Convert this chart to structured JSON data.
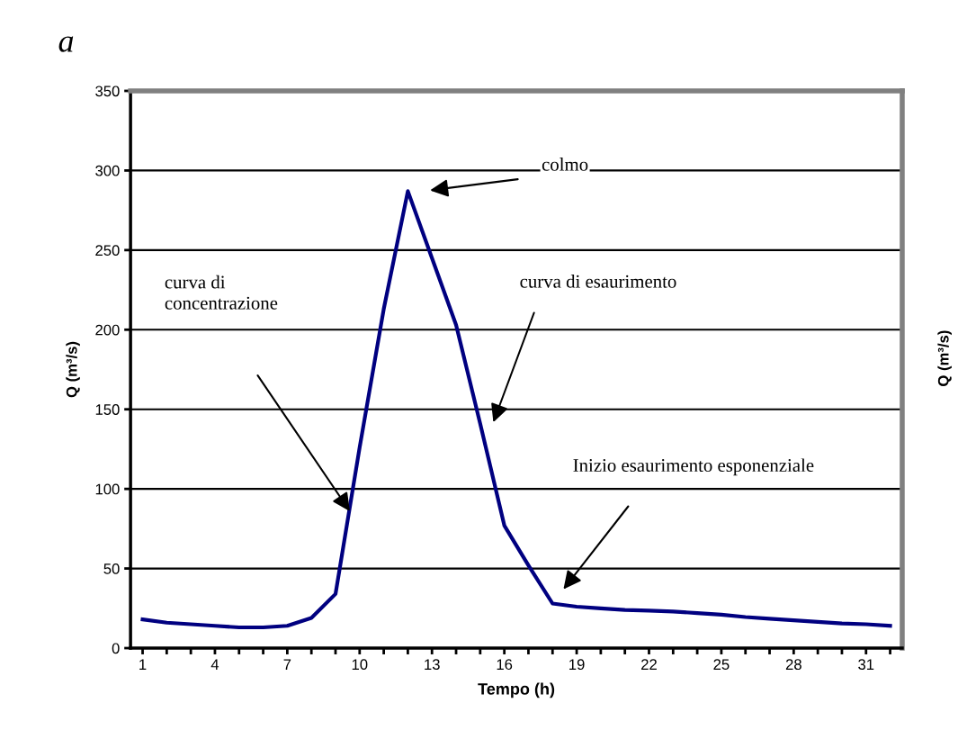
{
  "chart_data": {
    "type": "line",
    "title": "a",
    "xlabel": "Tempo (h)",
    "ylabel": "Q (m³/s)",
    "y2label": "Q (m³/s)",
    "x": [
      1,
      2,
      3,
      4,
      5,
      6,
      7,
      8,
      9,
      10,
      11,
      12,
      13,
      14,
      15,
      16,
      17,
      18,
      19,
      20,
      21,
      22,
      23,
      24,
      25,
      26,
      27,
      28,
      29,
      30,
      31,
      32
    ],
    "series": [
      {
        "color": "#000080",
        "values": [
          18,
          16,
          15,
          14,
          13,
          13,
          14,
          19,
          34,
          126,
          213,
          287,
          245,
          203,
          141,
          77,
          52,
          28,
          26,
          25,
          24,
          23.5,
          23,
          22,
          21,
          19.5,
          18.5,
          17.5,
          16.5,
          15.5,
          15,
          14
        ]
      }
    ],
    "xlim": [
      0.5,
      32.5
    ],
    "xticks": [
      1,
      {
        "value": 2,
        "label": null
      },
      {
        "value": 3,
        "label": null
      },
      4,
      {
        "value": 5,
        "label": null
      },
      {
        "value": 6,
        "label": null
      },
      7,
      {
        "value": 8,
        "label": null
      },
      {
        "value": 9,
        "label": null
      },
      10,
      {
        "value": 11,
        "label": null
      },
      {
        "value": 12,
        "label": null
      },
      13,
      {
        "value": 14,
        "label": null
      },
      {
        "value": 15,
        "label": null
      },
      16,
      {
        "value": 17,
        "label": null
      },
      {
        "value": 18,
        "label": null
      },
      19,
      {
        "value": 20,
        "label": null
      },
      {
        "value": 21,
        "label": null
      },
      22,
      {
        "value": 23,
        "label": null
      },
      {
        "value": 24,
        "label": null
      },
      25,
      {
        "value": 26,
        "label": null
      },
      {
        "value": 27,
        "label": null
      },
      28,
      {
        "value": 29,
        "label": null
      },
      {
        "value": 30,
        "label": null
      },
      31,
      {
        "value": 32,
        "label": null
      }
    ],
    "ylim": [
      0,
      350
    ],
    "yticks": [
      0,
      50,
      100,
      150,
      200,
      250,
      300,
      350
    ],
    "grid": "y",
    "marker": "none",
    "line_style": "solid",
    "annotations": [
      "colmo",
      "curva di\nconcentrazione",
      "curva di esaurimento",
      "Inizio esaurimento esponenziale"
    ]
  }
}
